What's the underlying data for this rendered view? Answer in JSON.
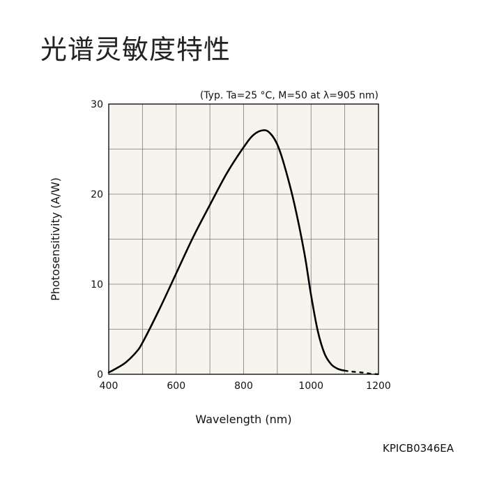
{
  "page": {
    "title": "光谱灵敏度特性",
    "figure_code": "KPICB0346EA"
  },
  "chart_data": {
    "type": "line",
    "conditions": "(Typ. Ta=25 °C, M=50 at λ=905 nm)",
    "xlabel": "Wavelength (nm)",
    "ylabel": "Photosensitivity (A/W)",
    "xlim": [
      400,
      1200
    ],
    "ylim": [
      0,
      30
    ],
    "xticks": [
      400,
      600,
      800,
      1000,
      1200
    ],
    "yticks": [
      0,
      10,
      20,
      30
    ],
    "x_tick_labels": [
      "400",
      "600",
      "800",
      "1000",
      "1200"
    ],
    "y_tick_labels": [
      "0",
      "10",
      "20",
      "30"
    ],
    "grid": true,
    "background_color": "#f6f4ec",
    "line_color": "#000000",
    "series": [
      {
        "style": "solid",
        "x": [
          400,
          420,
          450,
          480,
          500,
          550,
          600,
          650,
          700,
          750,
          800,
          830,
          860,
          880,
          900,
          920,
          950,
          980,
          1000,
          1020,
          1040,
          1060,
          1080,
          1100
        ],
        "y": [
          0.2,
          0.6,
          1.3,
          2.4,
          3.5,
          7.2,
          11.2,
          15.2,
          18.8,
          22.3,
          25.2,
          26.6,
          27.1,
          26.7,
          25.5,
          23.3,
          19.0,
          13.5,
          8.8,
          4.8,
          2.3,
          1.1,
          0.6,
          0.4
        ]
      },
      {
        "style": "dashed",
        "x": [
          1100,
          1120,
          1150,
          1180,
          1200
        ],
        "y": [
          0.4,
          0.3,
          0.2,
          0.05,
          0.0
        ]
      }
    ]
  }
}
